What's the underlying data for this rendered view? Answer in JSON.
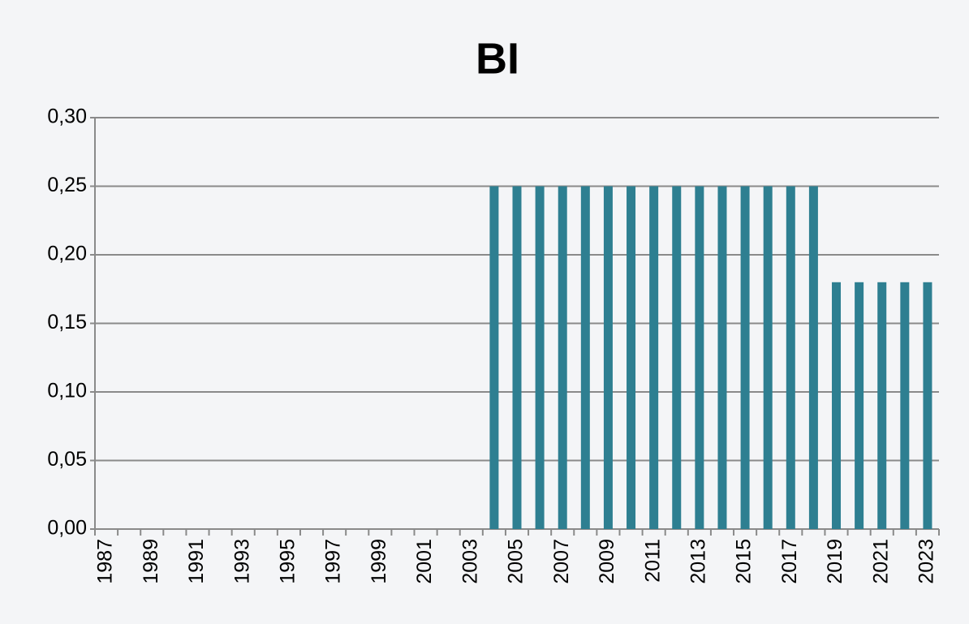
{
  "chart_data": {
    "type": "bar",
    "title": "BI",
    "categories": [
      "1987",
      null,
      "1989",
      null,
      "1991",
      null,
      "1993",
      null,
      "1995",
      null,
      "1997",
      null,
      "1999",
      null,
      "2001",
      null,
      "2003",
      null,
      "2005",
      null,
      "2007",
      null,
      "2009",
      null,
      "2011",
      null,
      "2013",
      null,
      "2015",
      null,
      "2017",
      null,
      "2019",
      null,
      "2021",
      null,
      "2023"
    ],
    "values": [
      0,
      0,
      0,
      0,
      0,
      0,
      0,
      0,
      0,
      0,
      0,
      0,
      0,
      0,
      0,
      0,
      0,
      0.25,
      0.25,
      0.25,
      0.25,
      0.25,
      0.25,
      0.25,
      0.25,
      0.25,
      0.25,
      0.25,
      0.25,
      0.25,
      0.25,
      0.25,
      0.18,
      0.18,
      0.18,
      0.18,
      0.18
    ],
    "color": "#2e7f91",
    "ylim": [
      0,
      0.3
    ],
    "yticks": [
      {
        "value": 0,
        "label": "0,00"
      },
      {
        "value": 0.05,
        "label": "0,05"
      },
      {
        "value": 0.1,
        "label": "0,10"
      },
      {
        "value": 0.15,
        "label": "0,15"
      },
      {
        "value": 0.2,
        "label": "0,20"
      },
      {
        "value": 0.25,
        "label": "0,25"
      },
      {
        "value": 0.3,
        "label": "0,30"
      }
    ],
    "grid": true
  }
}
